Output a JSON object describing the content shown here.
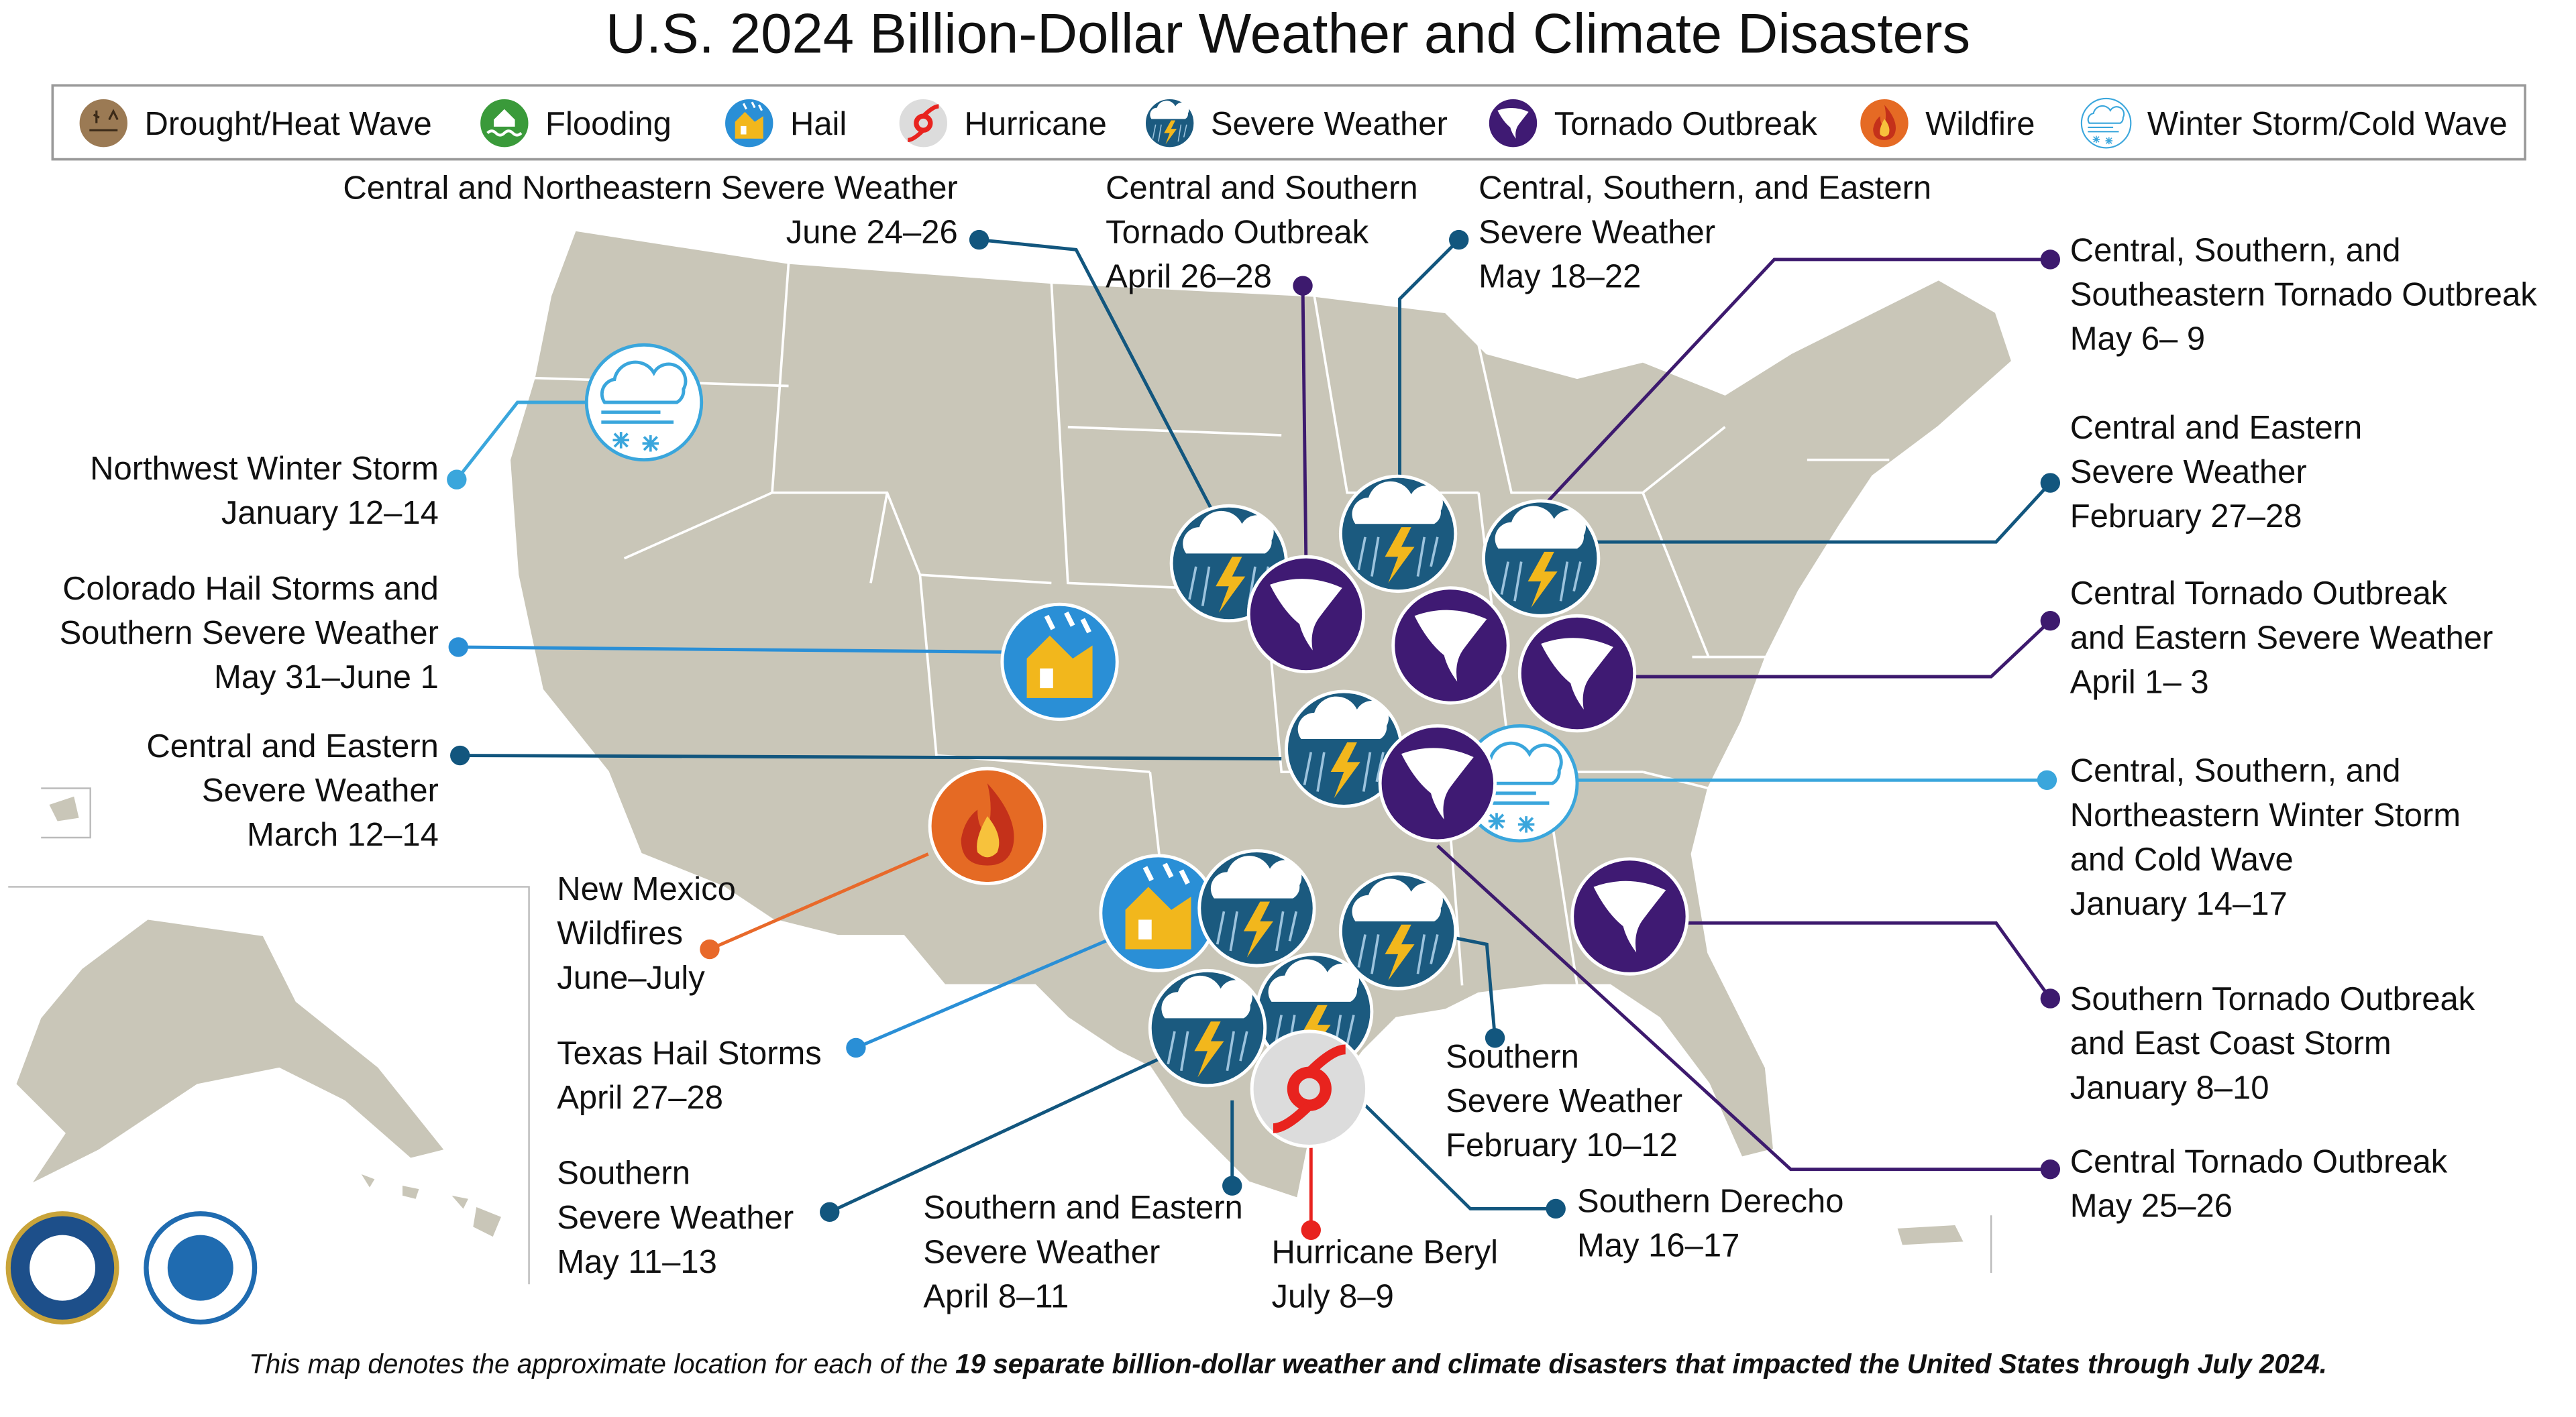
{
  "title": "U.S. 2024 Billion-Dollar Weather and Climate Disasters",
  "legend": [
    "Drought/Heat Wave",
    "Flooding",
    "Hail",
    "Hurricane",
    "Severe Weather",
    "Tornado Outbreak",
    "Wildfire",
    "Winter Storm/Cold Wave"
  ],
  "events": [
    {
      "lines": [
        "Central and Northeastern Severe Weather",
        "June 24–26"
      ]
    },
    {
      "lines": [
        "Central and Southern",
        "Tornado Outbreak",
        "April 26–28"
      ]
    },
    {
      "lines": [
        "Central, Southern, and Eastern",
        "Severe Weather",
        "May 18–22"
      ]
    },
    {
      "lines": [
        "Central, Southern, and",
        "Southeastern Tornado Outbreak",
        "May 6– 9"
      ]
    },
    {
      "lines": [
        "Central and Eastern",
        "Severe Weather",
        "February 27–28"
      ]
    },
    {
      "lines": [
        "Central Tornado Outbreak",
        "and Eastern Severe Weather",
        "April 1– 3"
      ]
    },
    {
      "lines": [
        "Central, Southern, and",
        "Northeastern Winter Storm",
        "and Cold Wave",
        "January 14–17"
      ]
    },
    {
      "lines": [
        "Southern Tornado Outbreak",
        "and East Coast Storm",
        "January 8–10"
      ]
    },
    {
      "lines": [
        "Central Tornado Outbreak",
        "May 25–26"
      ]
    },
    {
      "lines": [
        "Northwest Winter Storm",
        "January 12–14"
      ]
    },
    {
      "lines": [
        "Colorado Hail Storms and",
        "Southern Severe Weather",
        "May 31–June 1"
      ]
    },
    {
      "lines": [
        "Central and Eastern",
        "Severe Weather",
        "March 12–14"
      ]
    },
    {
      "lines": [
        "New Mexico",
        "Wildfires",
        "June–July"
      ]
    },
    {
      "lines": [
        "Texas Hail Storms",
        "April 27–28"
      ]
    },
    {
      "lines": [
        "Southern",
        "Severe Weather",
        "May 11–13"
      ]
    },
    {
      "lines": [
        "Southern and Eastern",
        "Severe Weather",
        "April 8–11"
      ]
    },
    {
      "lines": [
        "Hurricane Beryl",
        "July 8–9"
      ]
    },
    {
      "lines": [
        "Southern Derecho",
        "May 16–17"
      ]
    },
    {
      "lines": [
        "Southern",
        "Severe Weather",
        "February 10–12"
      ]
    }
  ],
  "footnote": {
    "text": "This map denotes the approximate location for each of the ",
    "bold": "19 separate billion-dollar weather and climate disasters that impacted the United States through July 2024."
  }
}
